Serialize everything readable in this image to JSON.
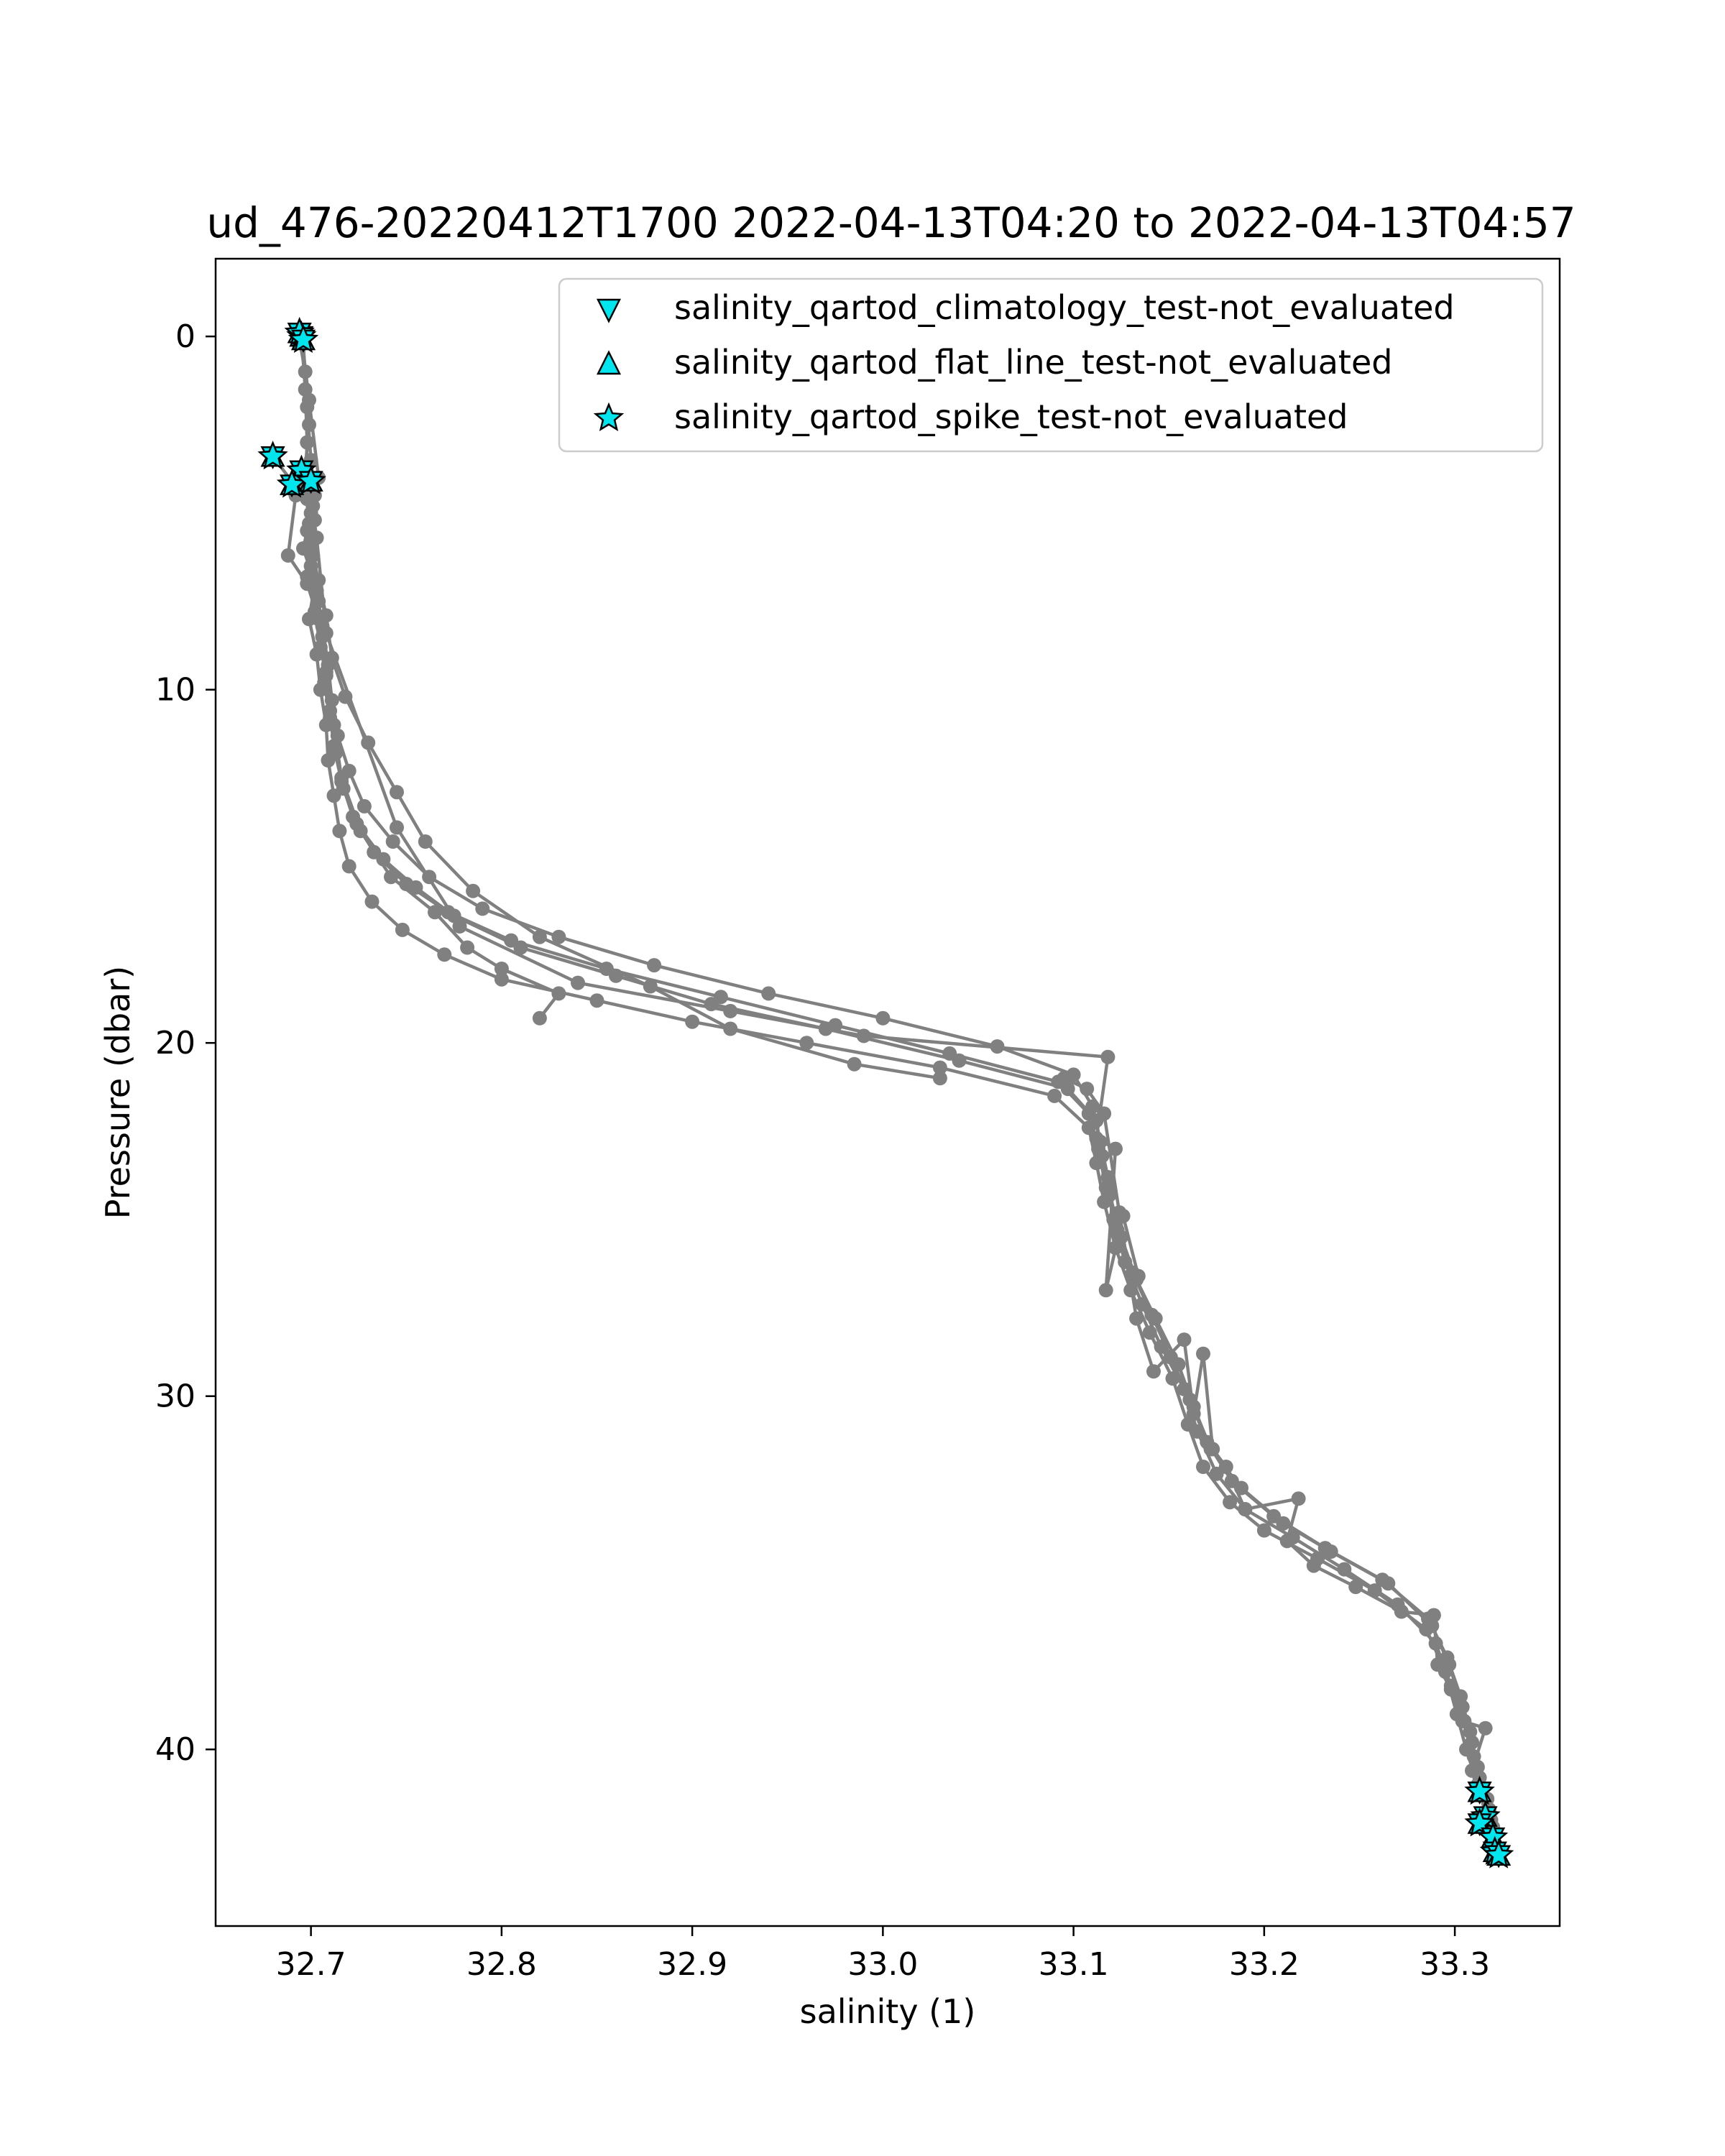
{
  "chart_data": {
    "type": "line",
    "title": "ud_476-20220412T1700 2022-04-13T04:20 to 2022-04-13T04:57",
    "xlabel": "salinity (1)",
    "ylabel": "Pressure (dbar)",
    "xlim": [
      32.65,
      33.355
    ],
    "ylim": [
      45.0,
      -2.2
    ],
    "y_inverted": true,
    "grid": false,
    "xticks": [
      32.7,
      32.8,
      32.9,
      33.0,
      33.1,
      33.2,
      33.3
    ],
    "xtick_labels": [
      "32.7",
      "32.8",
      "32.9",
      "33.0",
      "33.1",
      "33.2",
      "33.3"
    ],
    "yticks": [
      0,
      10,
      20,
      30,
      40
    ],
    "ytick_labels": [
      "0",
      "10",
      "20",
      "30",
      "40"
    ],
    "colors": {
      "profile": "#808080",
      "flag_fill": "#00e5ee",
      "flag_edge": "#000000"
    },
    "legend": {
      "position": "top-right",
      "entries": [
        {
          "label": "salinity_qartod_climatology_test-not_evaluated",
          "marker": "triangle-down"
        },
        {
          "label": "salinity_qartod_flat_line_test-not_evaluated",
          "marker": "triangle-up"
        },
        {
          "label": "salinity_qartod_spike_test-not_evaluated",
          "marker": "star"
        }
      ]
    },
    "series": [
      {
        "type": "line",
        "x": [
          32.695,
          32.697,
          32.698,
          32.697,
          32.7,
          32.696,
          32.702,
          32.699,
          32.703,
          32.705,
          32.708,
          32.709,
          32.712,
          32.715,
          32.72,
          32.732,
          32.748,
          32.77,
          32.8,
          32.85,
          32.9,
          32.96,
          33.03,
          33.09,
          33.108,
          33.112,
          33.116,
          33.122,
          33.13,
          33.14,
          33.152,
          33.16,
          33.168,
          33.182,
          33.2,
          33.228,
          33.258,
          33.285,
          33.295,
          33.301,
          33.306,
          33.312,
          33.316,
          33.32,
          33.322
        ],
        "y": [
          0,
          1.5,
          3.0,
          4.2,
          5.0,
          6.0,
          7.0,
          8.0,
          9.0,
          10.0,
          11.0,
          12.0,
          13.0,
          14.0,
          15.0,
          16.0,
          16.8,
          17.5,
          18.2,
          18.8,
          19.4,
          20.0,
          20.7,
          21.5,
          22.4,
          23.4,
          24.5,
          25.8,
          27.0,
          28.2,
          29.5,
          30.8,
          32.0,
          33.0,
          33.8,
          34.6,
          35.5,
          36.6,
          37.8,
          39.0,
          40.0,
          41.0,
          41.8,
          42.5,
          43.0
        ]
      },
      {
        "type": "line",
        "x": [
          32.694,
          32.697,
          32.699,
          32.697,
          32.701,
          32.698,
          32.7,
          32.704,
          32.706,
          32.707,
          32.71,
          32.713,
          32.717,
          32.724,
          32.738,
          32.755,
          32.775,
          32.81,
          32.86,
          32.91,
          32.97,
          33.04,
          33.097,
          33.112,
          33.115,
          33.119,
          33.125,
          33.133,
          33.143,
          33.155,
          33.163,
          33.172,
          33.188,
          33.21,
          33.235,
          33.265,
          33.288,
          33.297,
          33.304,
          33.309,
          33.313,
          33.318,
          33.321
        ],
        "y": [
          0.1,
          1.0,
          2.5,
          3.8,
          4.8,
          5.5,
          6.5,
          7.5,
          8.5,
          9.8,
          10.8,
          11.8,
          12.8,
          13.8,
          14.8,
          15.6,
          16.4,
          17.3,
          18.1,
          18.9,
          19.6,
          20.5,
          21.3,
          22.2,
          23.2,
          24.3,
          25.5,
          26.7,
          27.8,
          29.1,
          30.3,
          31.5,
          32.6,
          33.6,
          34.4,
          35.3,
          36.5,
          37.6,
          38.8,
          39.8,
          40.8,
          41.7,
          42.4
        ]
      },
      {
        "type": "line",
        "x": [
          32.696,
          32.698,
          32.7,
          32.702,
          32.699,
          32.701,
          32.703,
          32.706,
          32.709,
          32.711,
          32.714,
          32.72,
          32.728,
          32.743,
          32.762,
          32.79,
          32.83,
          32.88,
          32.94,
          33.0,
          33.06,
          33.1,
          33.11,
          33.114,
          33.118,
          33.121,
          33.127,
          33.136,
          33.146,
          33.158,
          33.165,
          33.175,
          33.19,
          33.215,
          33.242,
          33.27,
          33.29,
          33.298,
          33.305,
          33.31,
          33.314,
          33.319,
          33.322
        ],
        "y": [
          0.2,
          2.0,
          3.5,
          4.5,
          5.3,
          6.2,
          7.2,
          8.2,
          9.3,
          10.3,
          11.3,
          12.3,
          13.3,
          14.3,
          15.3,
          16.2,
          17.0,
          17.8,
          18.6,
          19.3,
          20.1,
          20.9,
          21.8,
          22.8,
          23.8,
          25.0,
          26.2,
          27.4,
          28.6,
          29.8,
          31.0,
          32.2,
          33.2,
          34.0,
          34.9,
          35.9,
          37.0,
          38.2,
          39.2,
          40.2,
          41.2,
          42.0,
          42.8
        ]
      },
      {
        "type": "line",
        "x": [
          32.695,
          32.699,
          32.704,
          32.7,
          32.698,
          32.702,
          32.705,
          32.708,
          32.71,
          32.712,
          32.716,
          32.722,
          32.733,
          32.75,
          32.772,
          32.805,
          32.855,
          32.915,
          32.975,
          33.035,
          33.092,
          33.108,
          33.113,
          33.117,
          33.123,
          33.131,
          33.141,
          33.151,
          33.161,
          33.17,
          33.183,
          33.205,
          33.232,
          33.262,
          33.286,
          33.296,
          33.303,
          33.308,
          33.312,
          33.317,
          33.32
        ],
        "y": [
          0.0,
          1.8,
          4.0,
          5.8,
          6.8,
          7.8,
          8.8,
          9.6,
          10.6,
          11.6,
          12.6,
          13.6,
          14.6,
          15.5,
          16.3,
          17.1,
          17.9,
          18.7,
          19.5,
          20.3,
          21.1,
          22.0,
          23.0,
          24.1,
          25.3,
          26.5,
          27.7,
          28.9,
          30.1,
          31.3,
          32.4,
          33.4,
          34.3,
          35.2,
          36.3,
          37.4,
          38.5,
          39.5,
          40.5,
          41.4,
          42.2
        ]
      },
      {
        "type": "line",
        "x": [
          32.68,
          32.69,
          32.692,
          32.688,
          32.698,
          32.704,
          32.708,
          32.712,
          32.716,
          32.726,
          32.742,
          32.765,
          32.782,
          32.8,
          32.83,
          32.82
        ],
        "y": [
          3.4,
          4.1,
          4.5,
          6.2,
          7.0,
          8.0,
          9.5,
          11.0,
          12.5,
          14.0,
          15.3,
          16.3,
          17.3,
          17.9,
          18.6,
          19.3
        ]
      },
      {
        "type": "line",
        "x": [
          32.692,
          32.698,
          32.702,
          32.7,
          32.704,
          32.708,
          32.711,
          32.718,
          32.73,
          32.745,
          32.76,
          32.785,
          32.82,
          32.878,
          32.92,
          32.985,
          33.03
        ],
        "y": [
          4.2,
          4.6,
          5.2,
          6.0,
          6.9,
          7.9,
          9.1,
          10.2,
          11.5,
          12.9,
          14.3,
          15.7,
          17.0,
          18.4,
          19.6,
          20.6,
          21.0
        ]
      },
      {
        "type": "line",
        "x": [
          32.7,
          32.703,
          32.708,
          32.745,
          32.778,
          32.84,
          32.92,
          32.99,
          33.118,
          33.112,
          33.122,
          33.117,
          33.126,
          33.134
        ],
        "y": [
          4.6,
          5.7,
          8.4,
          13.9,
          16.7,
          18.3,
          19.1,
          19.8,
          20.4,
          22.7,
          23.0,
          27.0,
          24.9,
          26.6
        ]
      },
      {
        "type": "line",
        "x": [
          33.095,
          33.107,
          33.116,
          33.124,
          33.133,
          33.142,
          33.158,
          33.163,
          33.168,
          33.173,
          33.18,
          33.19,
          33.218,
          33.212,
          33.226,
          33.248,
          33.272,
          33.289,
          33.291,
          33.298,
          33.304,
          33.316,
          33.309,
          33.314,
          33.32
        ],
        "y": [
          21.0,
          21.3,
          22.0,
          24.8,
          27.8,
          29.3,
          28.4,
          30.5,
          28.8,
          31.5,
          32.0,
          33.2,
          32.9,
          34.1,
          34.8,
          35.4,
          36.1,
          36.2,
          37.6,
          38.3,
          39.2,
          39.4,
          40.6,
          41.1,
          42.6
        ]
      }
    ],
    "flagged_points": [
      {
        "x": 32.695,
        "y": 0.0
      },
      {
        "x": 32.694,
        "y": -0.1
      },
      {
        "x": 32.696,
        "y": 0.1
      },
      {
        "x": 32.68,
        "y": 3.4
      },
      {
        "x": 32.695,
        "y": 3.8
      },
      {
        "x": 32.69,
        "y": 4.2
      },
      {
        "x": 32.7,
        "y": 4.1
      },
      {
        "x": 33.313,
        "y": 41.2
      },
      {
        "x": 33.316,
        "y": 41.9
      },
      {
        "x": 33.313,
        "y": 42.1
      },
      {
        "x": 33.32,
        "y": 42.5
      },
      {
        "x": 33.321,
        "y": 42.9
      },
      {
        "x": 33.323,
        "y": 43.0
      }
    ]
  }
}
